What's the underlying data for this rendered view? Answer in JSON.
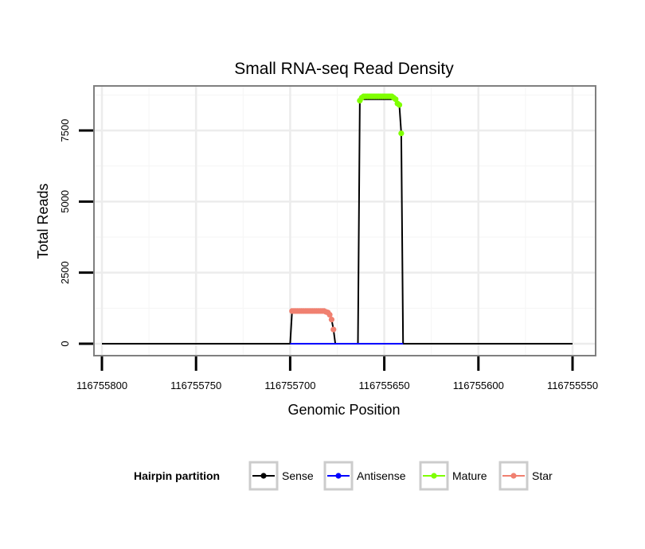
{
  "chart_data": {
    "type": "line",
    "title": "Small RNA-seq Read Density",
    "xlabel": "Genomic Position",
    "ylabel": "Total Reads",
    "x_reversed": true,
    "xlim": [
      116755550,
      116755800
    ],
    "ylim": [
      0,
      8800
    ],
    "x_ticks": [
      116755800,
      116755750,
      116755700,
      116755650,
      116755600,
      116755550
    ],
    "x_tick_labels": [
      "116755800",
      "116755750",
      "116755700",
      "116755650",
      "116755600",
      "116755550"
    ],
    "y_ticks": [
      0,
      2500,
      5000,
      7500
    ],
    "y_tick_labels": [
      "0",
      "2500",
      "5000",
      "7500"
    ],
    "grid": true,
    "legend": {
      "title": "Hairpin partition",
      "placement": "bottom",
      "entries": [
        "Sense",
        "Antisense",
        "Mature",
        "Star"
      ]
    },
    "colors": {
      "Sense": "#000000",
      "Antisense": "#0000ff",
      "Mature": "#7fff00",
      "Star": "#f08070"
    },
    "series": [
      {
        "name": "Sense",
        "x": [
          116755800,
          116755700,
          116755699,
          116755680,
          116755678,
          116755677,
          116755676,
          116755664,
          116755663,
          116755644,
          116755642,
          116755641,
          116755640,
          116755550
        ],
        "y": [
          0,
          0,
          1150,
          1150,
          850,
          500,
          0,
          0,
          8600,
          8600,
          8400,
          7400,
          0,
          0
        ]
      },
      {
        "name": "Antisense",
        "x": [
          116755700,
          116755640
        ],
        "y": [
          0,
          0
        ]
      },
      {
        "name": "Mature",
        "x": [
          116755663,
          116755662,
          116755661,
          116755660,
          116755659,
          116755658,
          116755657,
          116755656,
          116755655,
          116755654,
          116755653,
          116755652,
          116755651,
          116755650,
          116755649,
          116755648,
          116755647,
          116755646,
          116755645,
          116755644,
          116755643,
          116755642,
          116755641
        ],
        "y": [
          8550,
          8650,
          8700,
          8700,
          8700,
          8700,
          8700,
          8700,
          8700,
          8700,
          8700,
          8700,
          8700,
          8700,
          8700,
          8700,
          8700,
          8700,
          8650,
          8600,
          8450,
          8400,
          7400
        ]
      },
      {
        "name": "Star",
        "x": [
          116755699,
          116755698,
          116755697,
          116755696,
          116755695,
          116755694,
          116755693,
          116755692,
          116755691,
          116755690,
          116755689,
          116755688,
          116755687,
          116755686,
          116755685,
          116755684,
          116755683,
          116755682,
          116755681,
          116755680,
          116755679,
          116755678,
          116755677
        ],
        "y": [
          1150,
          1150,
          1150,
          1150,
          1150,
          1150,
          1150,
          1150,
          1150,
          1150,
          1150,
          1150,
          1150,
          1150,
          1150,
          1150,
          1150,
          1150,
          1120,
          1100,
          1020,
          850,
          500
        ]
      }
    ]
  }
}
